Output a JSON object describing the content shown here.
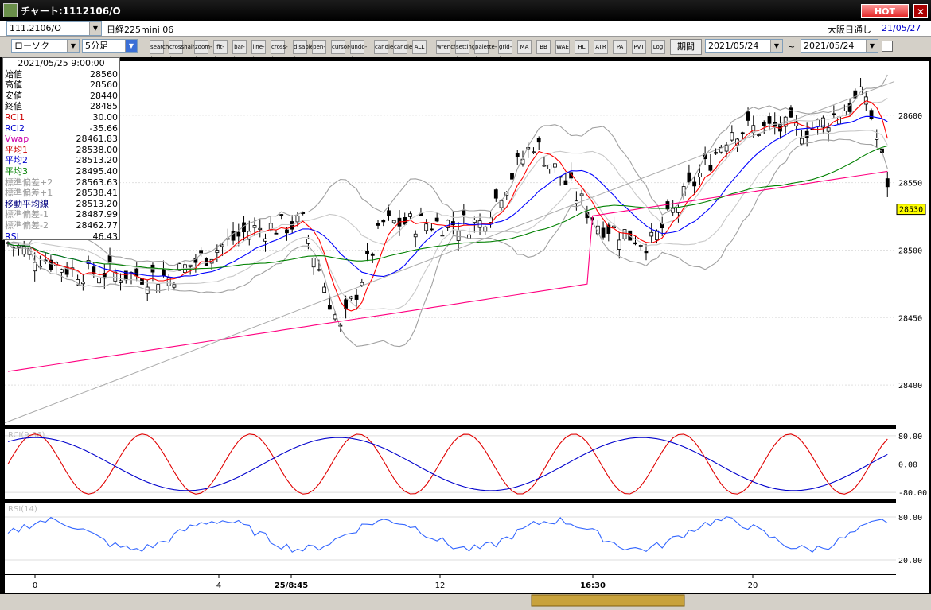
{
  "window": {
    "title": "チャート:1112106/O",
    "hot_label": "HOT",
    "close_label": "✕"
  },
  "info": {
    "symbol": "111.2106/O",
    "name": "日経225mini 06",
    "session": "大阪日通し",
    "date": "21/05/27"
  },
  "toolbar": {
    "chart_type": "ローソク",
    "interval": "5分足",
    "period_label": "期間",
    "date_from": "2021/05/24",
    "date_sep": "~",
    "date_to": "2021/05/24",
    "buttons": [
      "search-icon",
      "crosshair-icon",
      "zoom-icon",
      "fit-icon",
      "bar-icon",
      "line-icon",
      "cross-icon",
      "disabled-icon",
      "pen-icon",
      "cursor-icon",
      "undo-icon",
      "candle-prev-icon",
      "candle-next-icon",
      "ALL",
      "wrench-icon",
      "settings-icon",
      "palette-icon",
      "grid-icon",
      "MA",
      "BB",
      "WAE",
      "HL",
      "ATR",
      "PA",
      "PVT",
      "Log",
      "export-icon"
    ]
  },
  "panel": {
    "datetime": "2021/05/25  9:00:00",
    "rows": [
      {
        "label": "始値",
        "value": "28560",
        "color": "#000000"
      },
      {
        "label": "高値",
        "value": "28560",
        "color": "#000000"
      },
      {
        "label": "安値",
        "value": "28440",
        "color": "#000000"
      },
      {
        "label": "終値",
        "value": "28485",
        "color": "#000000"
      },
      {
        "label": "RCI1",
        "value": "30.00",
        "color": "#cc0000"
      },
      {
        "label": "RCI2",
        "value": "-35.66",
        "color": "#0000cc"
      },
      {
        "label": "Vwap",
        "value": "28461.83",
        "color": "#cc00aa"
      },
      {
        "label": "平均1",
        "value": "28538.00",
        "color": "#cc0000"
      },
      {
        "label": "平均2",
        "value": "28513.20",
        "color": "#0000cc"
      },
      {
        "label": "平均3",
        "value": "28495.40",
        "color": "#008000"
      },
      {
        "label": "標準偏差+2",
        "value": "28563.63",
        "color": "#999999"
      },
      {
        "label": "標準偏差+1",
        "value": "28538.41",
        "color": "#999999"
      },
      {
        "label": "移動平均線",
        "value": "28513.20",
        "color": "#000080"
      },
      {
        "label": "標準偏差-1",
        "value": "28487.99",
        "color": "#999999"
      },
      {
        "label": "標準偏差-2",
        "value": "28462.77",
        "color": "#999999"
      },
      {
        "label": "RSI",
        "value": "46.43",
        "color": "#0000cc"
      }
    ]
  },
  "chart_data": [
    {
      "type": "candlestick",
      "yticks": [
        "28600",
        "28550",
        "28500",
        "28450",
        "28400"
      ],
      "ylim": [
        28370,
        28640
      ],
      "xticks": [
        "0",
        "4",
        "25/8:45",
        "12",
        "16:30",
        "20"
      ],
      "current_price": "28530",
      "series": [
        {
          "name": "平均1",
          "color": "#ff0000"
        },
        {
          "name": "平均2",
          "color": "#0000ff"
        },
        {
          "name": "平均3",
          "color": "#008000"
        },
        {
          "name": "Vwap",
          "color": "#ff0080"
        }
      ]
    },
    {
      "type": "line",
      "title": "RCI(9,36)",
      "yticks": [
        "80.00",
        "0.00",
        "-80.00"
      ],
      "ylim": [
        -100,
        100
      ]
    },
    {
      "type": "line",
      "title": "RSI(14)",
      "yticks": [
        "80.00",
        "20.00"
      ],
      "ylim": [
        0,
        100
      ]
    }
  ]
}
